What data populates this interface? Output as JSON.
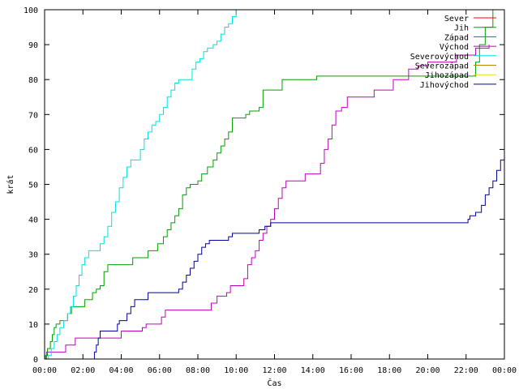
{
  "chart_data": {
    "type": "line",
    "title": "",
    "xlabel": "Čas",
    "ylabel": "krát",
    "xlim": [
      0,
      24
    ],
    "ylim": [
      0,
      100
    ],
    "x_tick_labels": [
      "00:00",
      "02:00",
      "04:00",
      "06:00",
      "08:00",
      "10:00",
      "12:00",
      "14:00",
      "16:00",
      "18:00",
      "20:00",
      "22:00",
      "00:00"
    ],
    "y_tick_labels": [
      "0",
      "10",
      "20",
      "30",
      "40",
      "50",
      "60",
      "70",
      "80",
      "90",
      "100"
    ],
    "grid": false,
    "legend_position": "top-right",
    "legend": [
      "Sever",
      "Jih",
      "Západ",
      "Východ",
      "Severovýchod",
      "Severozápad",
      "Jihozápad",
      "Jihovýchod"
    ],
    "series": [
      {
        "name": "Sever",
        "color": "#ff0000",
        "points": []
      },
      {
        "name": "Jih",
        "color": "#00a000",
        "points": [
          [
            0,
            0
          ],
          [
            0.05,
            1
          ],
          [
            0.15,
            3
          ],
          [
            0.3,
            5
          ],
          [
            0.4,
            7
          ],
          [
            0.5,
            9
          ],
          [
            0.6,
            10
          ],
          [
            0.8,
            11
          ],
          [
            1.1,
            11
          ],
          [
            1.2,
            13
          ],
          [
            1.4,
            15
          ],
          [
            1.9,
            15
          ],
          [
            2.1,
            17
          ],
          [
            2.4,
            17
          ],
          [
            2.5,
            19
          ],
          [
            2.7,
            20
          ],
          [
            2.9,
            21
          ],
          [
            3.1,
            25
          ],
          [
            3.3,
            27
          ],
          [
            4.5,
            27
          ],
          [
            4.6,
            29
          ],
          [
            5.3,
            29
          ],
          [
            5.4,
            31
          ],
          [
            5.8,
            31
          ],
          [
            5.9,
            33
          ],
          [
            6.2,
            35
          ],
          [
            6.4,
            37
          ],
          [
            6.6,
            39
          ],
          [
            6.8,
            41
          ],
          [
            7.0,
            43
          ],
          [
            7.2,
            47
          ],
          [
            7.4,
            49
          ],
          [
            7.6,
            50
          ],
          [
            8.0,
            51
          ],
          [
            8.2,
            53
          ],
          [
            8.5,
            55
          ],
          [
            8.8,
            57
          ],
          [
            9.0,
            59
          ],
          [
            9.2,
            61
          ],
          [
            9.4,
            63
          ],
          [
            9.6,
            65
          ],
          [
            9.8,
            69
          ],
          [
            10.5,
            70
          ],
          [
            10.7,
            71
          ],
          [
            11.2,
            72
          ],
          [
            11.4,
            77
          ],
          [
            12.2,
            77
          ],
          [
            12.4,
            80
          ],
          [
            14.0,
            80
          ],
          [
            14.2,
            81
          ],
          [
            22.3,
            81
          ],
          [
            22.5,
            85
          ],
          [
            22.7,
            90
          ],
          [
            23.0,
            95
          ],
          [
            23.4,
            100
          ]
        ]
      },
      {
        "name": "Západ",
        "color": "#008080",
        "points": []
      },
      {
        "name": "Východ",
        "color": "#c000c0",
        "points": [
          [
            0,
            0
          ],
          [
            0.1,
            2
          ],
          [
            1.0,
            2
          ],
          [
            1.1,
            4
          ],
          [
            1.5,
            4
          ],
          [
            1.6,
            6
          ],
          [
            3.9,
            6
          ],
          [
            4.0,
            8
          ],
          [
            5.0,
            8
          ],
          [
            5.1,
            9
          ],
          [
            5.3,
            10
          ],
          [
            6.0,
            10
          ],
          [
            6.1,
            12
          ],
          [
            6.3,
            14
          ],
          [
            8.5,
            14
          ],
          [
            8.7,
            16
          ],
          [
            9.0,
            18
          ],
          [
            9.5,
            19
          ],
          [
            9.7,
            21
          ],
          [
            10.2,
            21
          ],
          [
            10.4,
            23
          ],
          [
            10.6,
            27
          ],
          [
            10.8,
            29
          ],
          [
            11.0,
            31
          ],
          [
            11.2,
            34
          ],
          [
            11.4,
            36
          ],
          [
            11.6,
            38
          ],
          [
            11.8,
            40
          ],
          [
            12.0,
            43
          ],
          [
            12.2,
            46
          ],
          [
            12.4,
            49
          ],
          [
            12.6,
            51
          ],
          [
            13.4,
            51
          ],
          [
            13.6,
            53
          ],
          [
            14.2,
            53
          ],
          [
            14.4,
            56
          ],
          [
            14.6,
            60
          ],
          [
            14.8,
            63
          ],
          [
            15.0,
            67
          ],
          [
            15.2,
            71
          ],
          [
            15.5,
            72
          ],
          [
            15.8,
            75
          ],
          [
            17.0,
            75
          ],
          [
            17.2,
            77
          ],
          [
            18.0,
            77
          ],
          [
            18.2,
            80
          ],
          [
            18.8,
            80
          ],
          [
            19.0,
            83
          ],
          [
            19.5,
            84
          ],
          [
            20.0,
            85
          ],
          [
            21.5,
            87
          ],
          [
            22.5,
            89
          ],
          [
            23.2,
            90
          ]
        ]
      },
      {
        "name": "Severovýchod",
        "color": "#00e0e0",
        "points": [
          [
            0,
            0
          ],
          [
            0.2,
            1
          ],
          [
            0.35,
            3
          ],
          [
            0.5,
            5
          ],
          [
            0.65,
            7
          ],
          [
            0.8,
            9
          ],
          [
            1.0,
            11
          ],
          [
            1.2,
            13
          ],
          [
            1.35,
            15
          ],
          [
            1.5,
            18
          ],
          [
            1.65,
            21
          ],
          [
            1.8,
            24
          ],
          [
            1.95,
            27
          ],
          [
            2.1,
            29
          ],
          [
            2.3,
            31
          ],
          [
            2.7,
            31
          ],
          [
            2.9,
            33
          ],
          [
            3.1,
            35
          ],
          [
            3.3,
            38
          ],
          [
            3.5,
            42
          ],
          [
            3.7,
            45
          ],
          [
            3.9,
            49
          ],
          [
            4.1,
            52
          ],
          [
            4.3,
            55
          ],
          [
            4.5,
            57
          ],
          [
            4.8,
            57
          ],
          [
            5.0,
            60
          ],
          [
            5.2,
            63
          ],
          [
            5.4,
            65
          ],
          [
            5.6,
            67
          ],
          [
            5.8,
            68
          ],
          [
            6.0,
            70
          ],
          [
            6.2,
            72
          ],
          [
            6.4,
            75
          ],
          [
            6.6,
            77
          ],
          [
            6.8,
            79
          ],
          [
            7.0,
            80
          ],
          [
            7.5,
            80
          ],
          [
            7.7,
            83
          ],
          [
            7.9,
            85
          ],
          [
            8.1,
            86
          ],
          [
            8.3,
            88
          ],
          [
            8.5,
            89
          ],
          [
            8.8,
            90
          ],
          [
            9.0,
            91
          ],
          [
            9.2,
            93
          ],
          [
            9.4,
            95
          ],
          [
            9.6,
            96
          ],
          [
            9.8,
            98
          ],
          [
            10.0,
            100
          ]
        ]
      },
      {
        "name": "Severozápad",
        "color": "#c08000",
        "points": []
      },
      {
        "name": "Jihozápad",
        "color": "#e0e000",
        "points": []
      },
      {
        "name": "Jihovýchod",
        "color": "#0000a0",
        "points": [
          [
            2.5,
            0
          ],
          [
            2.6,
            2
          ],
          [
            2.7,
            4
          ],
          [
            2.8,
            6
          ],
          [
            2.9,
            8
          ],
          [
            3.7,
            8
          ],
          [
            3.8,
            10
          ],
          [
            3.9,
            11
          ],
          [
            4.1,
            11
          ],
          [
            4.3,
            13
          ],
          [
            4.5,
            15
          ],
          [
            4.7,
            17
          ],
          [
            5.3,
            17
          ],
          [
            5.4,
            19
          ],
          [
            6.8,
            19
          ],
          [
            7.0,
            20
          ],
          [
            7.2,
            22
          ],
          [
            7.4,
            24
          ],
          [
            7.6,
            26
          ],
          [
            7.8,
            28
          ],
          [
            8.0,
            30
          ],
          [
            8.2,
            32
          ],
          [
            8.4,
            33
          ],
          [
            8.6,
            34
          ],
          [
            9.5,
            34
          ],
          [
            9.6,
            35
          ],
          [
            9.8,
            36
          ],
          [
            11.0,
            36
          ],
          [
            11.2,
            37
          ],
          [
            11.5,
            38
          ],
          [
            11.8,
            39
          ],
          [
            22.0,
            39
          ],
          [
            22.1,
            40
          ],
          [
            22.2,
            41
          ],
          [
            22.5,
            42
          ],
          [
            22.8,
            44
          ],
          [
            23.0,
            47
          ],
          [
            23.2,
            49
          ],
          [
            23.4,
            51
          ],
          [
            23.6,
            54
          ],
          [
            23.8,
            57
          ],
          [
            24.0,
            59
          ]
        ]
      }
    ]
  }
}
